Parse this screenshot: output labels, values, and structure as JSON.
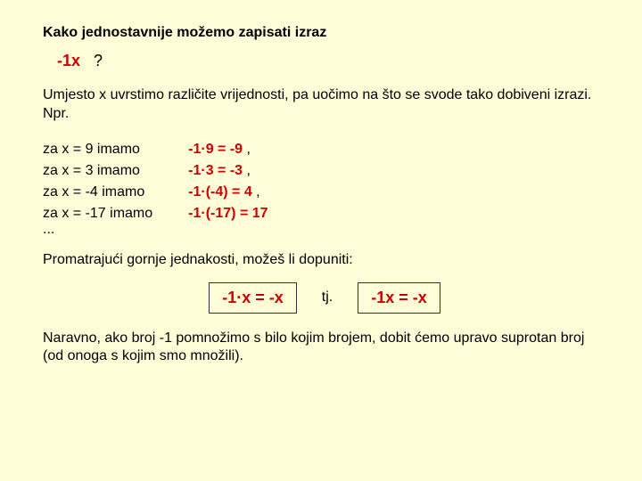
{
  "colors": {
    "background": "#fffcd8",
    "text": "#000000",
    "emphasis": "#cc0000",
    "box_border": "#333333"
  },
  "typography": {
    "font_family": "Comic Sans MS",
    "body_fontsize": 16,
    "expr_fontsize": 18,
    "box_fontsize": 18
  },
  "heading": "Kako jednostavnije možemo zapisati izraz",
  "expression": {
    "left": "-1x",
    "right": "?"
  },
  "intro": "Umjesto x uvrstimo različite vrijednosti, pa uočimo na što se svode tako dobiveni izrazi. Npr.",
  "examples": [
    {
      "lhs": "za  x = 9  imamo",
      "pre": "-1·9 = ",
      "val": "-9",
      "post": " ,"
    },
    {
      "lhs": "za  x = 3  imamo",
      "pre": "-1·3 = ",
      "val": "-3",
      "post": " ,"
    },
    {
      "lhs": "za  x = -4  imamo",
      "pre": "-1·(-4) = ",
      "val": "4",
      "post": " ,"
    },
    {
      "lhs": "za  x = -17  imamo",
      "pre": "-1·(-17) = ",
      "val": "17",
      "post": ""
    }
  ],
  "ellipsis": "...",
  "follow": "Promatrajući gornje jednakosti, možeš li dopuniti:",
  "boxes": {
    "left": "-1·x  =  -x",
    "mid": "tj.",
    "right": "-1x  =  -x"
  },
  "closing": "Naravno, ako broj -1 pomnožimo s bilo kojim brojem, dobit ćemo upravo suprotan broj (od onoga s kojim smo množili)."
}
